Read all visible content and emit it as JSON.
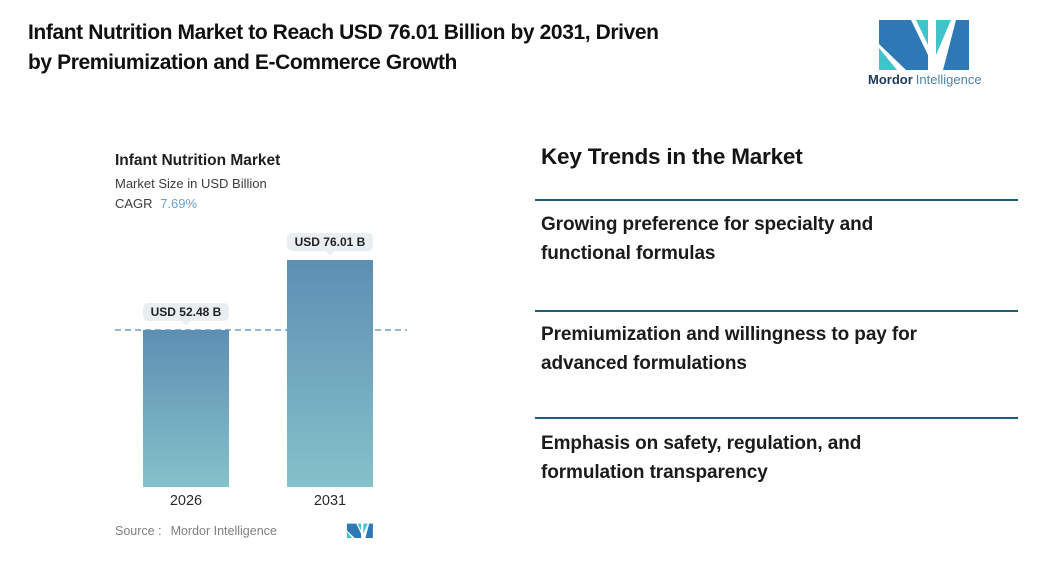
{
  "header": {
    "title": "Infant Nutrition Market to Reach USD 76.01 Billion by 2031, Driven\nby Premiumization and E-Commerce Growth",
    "logo": {
      "text_bold": "Mordor",
      "text_light": "Intelligence"
    }
  },
  "chart": {
    "title": "Infant Nutrition Market",
    "subtitle": "Market Size in USD Billion",
    "cagr_label": "CAGR",
    "cagr_value": "7.69%",
    "source_label": "Source :",
    "source_value": "Mordor Intelligence"
  },
  "chart_data": {
    "type": "bar",
    "title": "Infant Nutrition Market",
    "subtitle": "Market Size in USD Billion",
    "cagr": "7.69%",
    "unit": "USD Billion",
    "categories": [
      "2026",
      "2031"
    ],
    "values": [
      52.48,
      76.01
    ],
    "value_labels": [
      "USD 52.48 B",
      "USD 76.01 B"
    ],
    "ylim": [
      0,
      86
    ],
    "grid": false,
    "dashed_reference_line_at": 52.48,
    "bar_gradient": [
      "#5d8fb3",
      "#85c1ca"
    ]
  },
  "trends": {
    "heading": "Key Trends in the Market",
    "items": [
      "Growing preference for specialty and\nfunctional formulas",
      "Premiumization and willingness to pay for\nadvanced formulations",
      "Emphasis on safety, regulation, and\nformulation transparency"
    ]
  },
  "colors": {
    "divider": "#1f5b7d",
    "cagr_value": "#6f9fc8",
    "dashed_line": "#93b7d3",
    "bar_top": "#5d8fb3",
    "bar_bottom": "#85c1ca",
    "pill_background": "#e9eff0",
    "logo_dark_blue": "#2e79b5",
    "logo_teal": "#41c4c9",
    "logo_text_dark": "#1b3a5e",
    "logo_text_light": "#4d83aa"
  }
}
